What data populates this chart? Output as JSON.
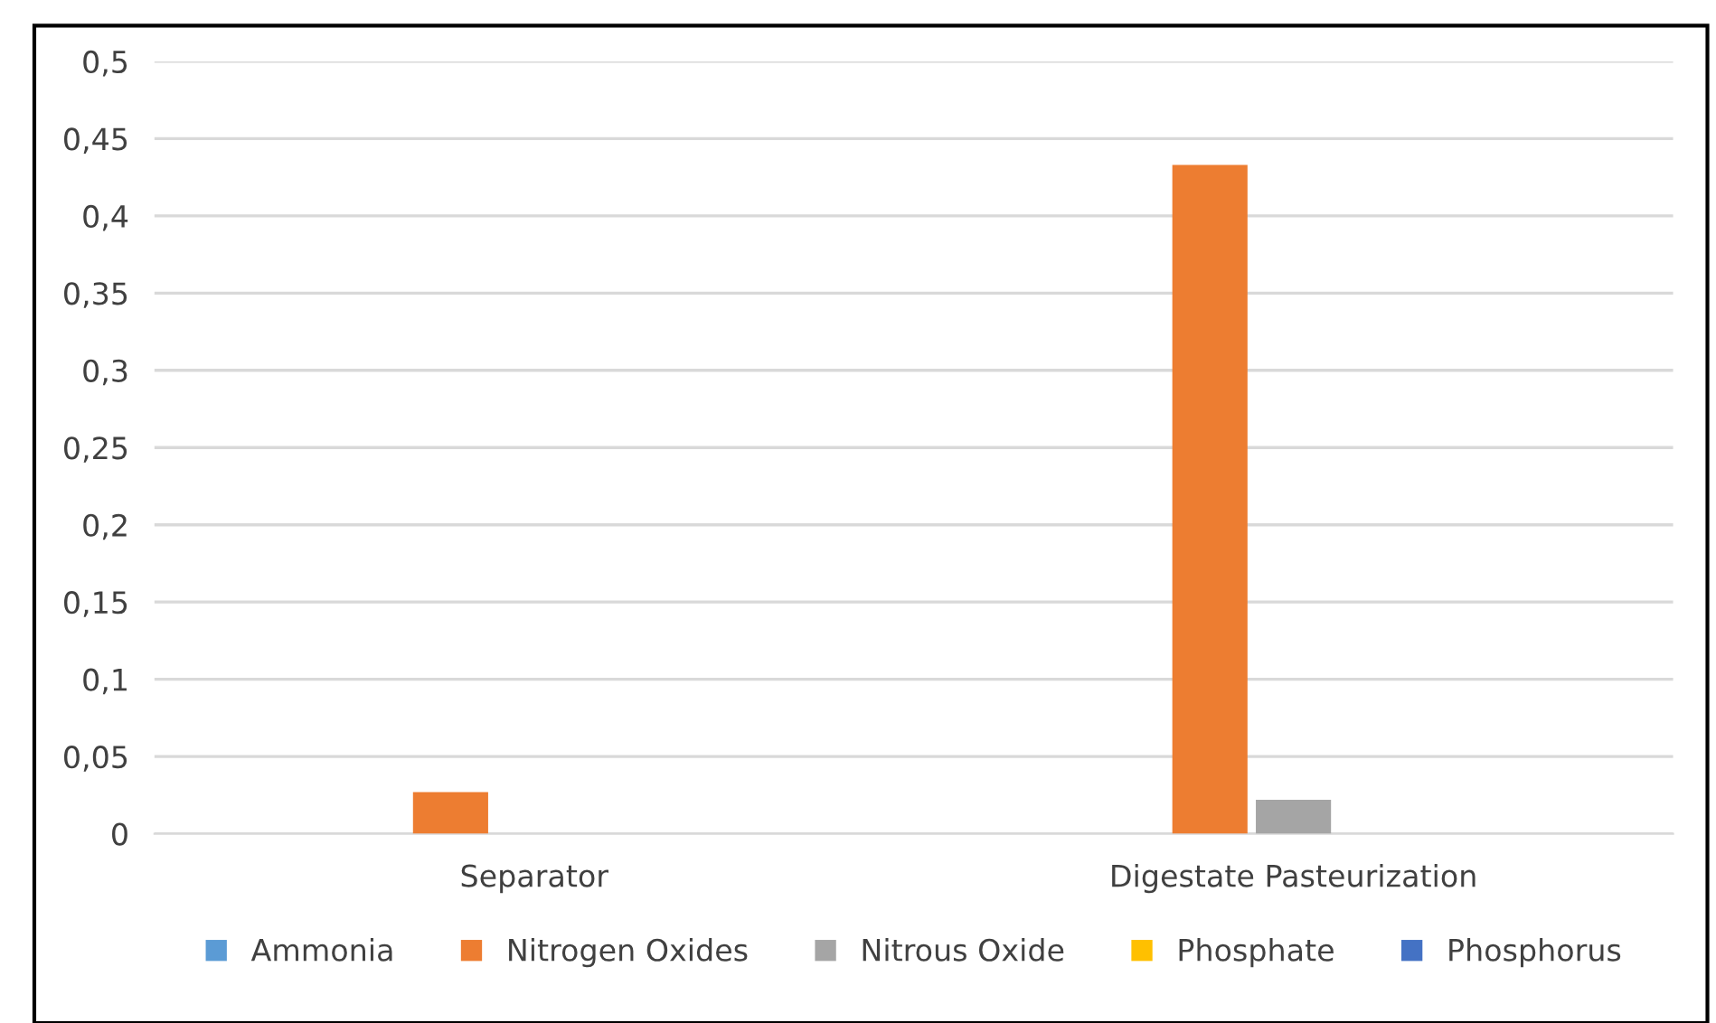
{
  "chart_data": {
    "type": "bar",
    "categories": [
      "Separator",
      "Digestate Pasteurization"
    ],
    "series": [
      {
        "name": "Ammonia",
        "color": "#5b9bd5",
        "values": [
          0,
          0
        ]
      },
      {
        "name": "Nitrogen Oxides",
        "color": "#ed7d31",
        "values": [
          0.027,
          0.433
        ]
      },
      {
        "name": "Nitrous Oxide",
        "color": "#a5a5a5",
        "values": [
          0,
          0.022
        ]
      },
      {
        "name": "Phosphate",
        "color": "#ffc000",
        "values": [
          0,
          0
        ]
      },
      {
        "name": "Phosphorus",
        "color": "#4472c4",
        "values": [
          0,
          0
        ]
      }
    ],
    "ylim": [
      0,
      0.5
    ],
    "yticks": [
      {
        "value": 0,
        "label": "0"
      },
      {
        "value": 0.05,
        "label": "0,05"
      },
      {
        "value": 0.1,
        "label": "0,1"
      },
      {
        "value": 0.15,
        "label": "0,15"
      },
      {
        "value": 0.2,
        "label": "0,2"
      },
      {
        "value": 0.25,
        "label": "0,25"
      },
      {
        "value": 0.3,
        "label": "0,3"
      },
      {
        "value": 0.35,
        "label": "0,35"
      },
      {
        "value": 0.4,
        "label": "0,4"
      },
      {
        "value": 0.45,
        "label": "0,45"
      },
      {
        "value": 0.5,
        "label": "0,5"
      }
    ],
    "grid": "y",
    "legend": "bottom"
  }
}
